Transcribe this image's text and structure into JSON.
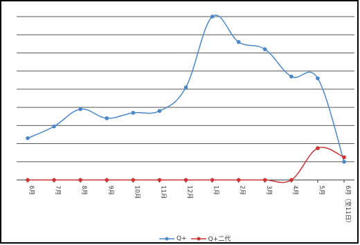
{
  "chart_data": {
    "type": "line",
    "categories": [
      "6月",
      "7月",
      "8月",
      "9月",
      "10月",
      "11月",
      "12月",
      "1月",
      "2月",
      "3月",
      "4月",
      "5月",
      "6月（至11日）"
    ],
    "ylim": [
      0,
      9
    ],
    "grid": true,
    "legend_position": "bottom",
    "series": [
      {
        "name": "Q+",
        "color": "#4a86c8",
        "values": [
          2.3,
          2.95,
          3.9,
          3.4,
          3.7,
          3.8,
          5.1,
          9.0,
          7.6,
          7.2,
          5.7,
          5.6,
          1.0
        ]
      },
      {
        "name": "Q+二代",
        "color": "#cc3333",
        "values": [
          0,
          0,
          0,
          0,
          0,
          0,
          0,
          0,
          0,
          0,
          0,
          1.75,
          1.25
        ]
      }
    ]
  }
}
